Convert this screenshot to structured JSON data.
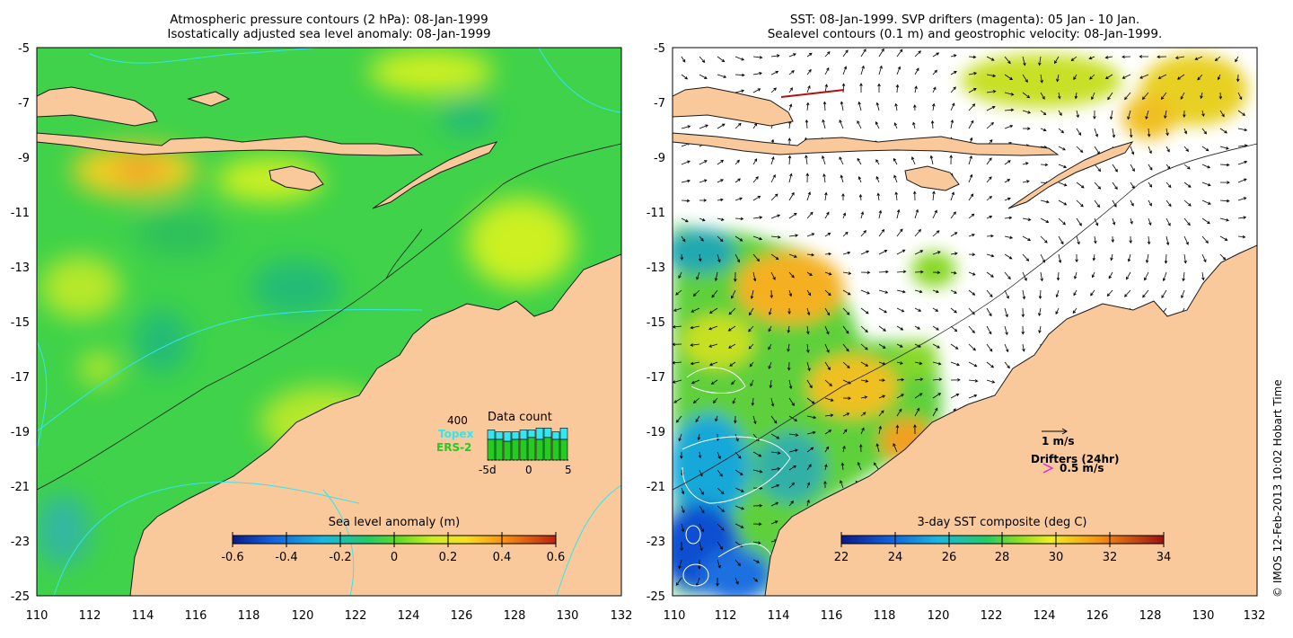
{
  "left_panel": {
    "title_line1": "Atmospheric pressure contours (2 hPa): 08-Jan-1999",
    "title_line2": "Isostatically adjusted sea level anomaly: 08-Jan-1999",
    "y_ticks": [
      "-5",
      "-7",
      "-9",
      "-11",
      "-13",
      "-15",
      "-17",
      "-19",
      "-21",
      "-23",
      "-25"
    ],
    "x_ticks": [
      "110",
      "112",
      "114",
      "116",
      "118",
      "120",
      "122",
      "124",
      "126",
      "128",
      "130",
      "132"
    ],
    "colorbar": {
      "label": "Sea level anomaly (m)",
      "ticks": [
        "-0.6",
        "-0.4",
        "-0.2",
        "0",
        "0.2",
        "0.4",
        "0.6"
      ]
    },
    "data_count": {
      "title": "Data count",
      "max_label": "400",
      "topex_label": "Topex",
      "ers2_label": "ERS-2",
      "x_ticks": [
        "-5d",
        "0",
        "5"
      ],
      "topex_color": "#33e6f0",
      "ers2_color": "#22cc22",
      "ers2_fraction": [
        0.55,
        0.55,
        0.5,
        0.55,
        0.55,
        0.6,
        0.55,
        0.6,
        0.55,
        0.55
      ],
      "topex_fraction": [
        0.25,
        0.2,
        0.25,
        0.2,
        0.25,
        0.2,
        0.3,
        0.25,
        0.2,
        0.3
      ]
    }
  },
  "right_panel": {
    "title_line1": "SST: 08-Jan-1999. SVP drifters (magenta): 05 Jan - 10 Jan.",
    "title_line2": "Sealevel contours (0.1 m) and geostrophic velocity: 08-Jan-1999.",
    "y_ticks": [
      "-5",
      "-7",
      "-9",
      "-11",
      "-13",
      "-15",
      "-17",
      "-19",
      "-21",
      "-23",
      "-25"
    ],
    "x_ticks": [
      "110",
      "112",
      "114",
      "116",
      "118",
      "120",
      "122",
      "124",
      "126",
      "128",
      "130",
      "132"
    ],
    "colorbar": {
      "label": "3-day SST composite (deg C)",
      "ticks": [
        "22",
        "24",
        "26",
        "28",
        "30",
        "32",
        "34"
      ]
    },
    "velocity_legend": "1 m/s",
    "drifter_legend_title": "Drifters (24hr)",
    "drifter_legend_value": "0.5 m/s",
    "drifter_color": "#dd22dd"
  },
  "credit": "© IMOS 12-Feb-2013 10:02 Hobart Time",
  "colors": {
    "land": "#f9c89b",
    "sea_base": "#3fd24a",
    "coast": "#1a1a1a",
    "pressure_contour": "#33e6f0"
  }
}
